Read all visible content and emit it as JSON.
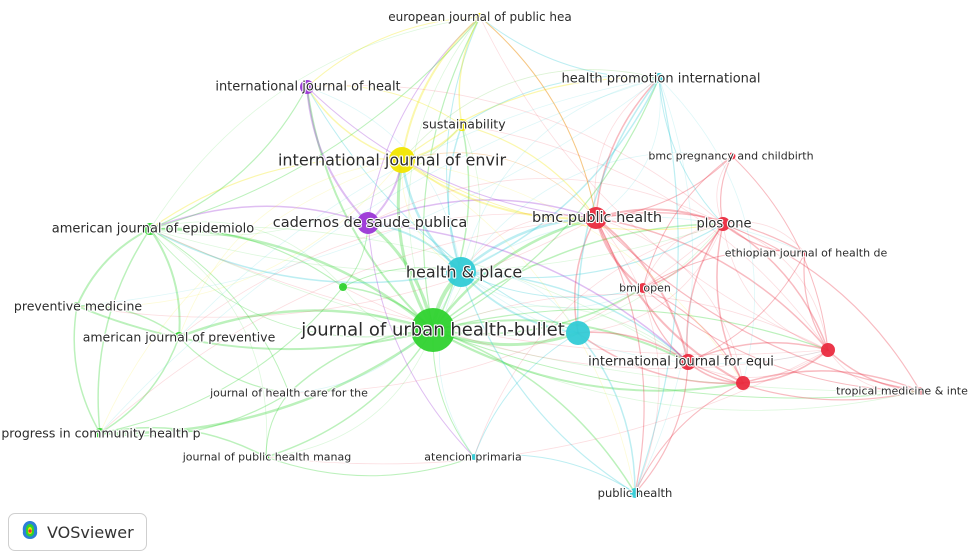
{
  "network": {
    "nodes": [
      {
        "id": "european",
        "label": "european journal of public hea",
        "cluster": "yellow"
      },
      {
        "id": "ijhealt",
        "label": "international journal of healt",
        "cluster": "purple"
      },
      {
        "id": "hpi",
        "label": "health promotion international",
        "cluster": "cyan"
      },
      {
        "id": "sustain",
        "label": "sustainability",
        "cluster": "yellow"
      },
      {
        "id": "bmcpreg",
        "label": "bmc pregnancy and childbirth",
        "cluster": "red"
      },
      {
        "id": "ijenvir",
        "label": "international journal of envir",
        "cluster": "yellow"
      },
      {
        "id": "amepi",
        "label": "american journal of epidemiolo",
        "cluster": "green"
      },
      {
        "id": "cadernos",
        "label": "cadernos de saude publica",
        "cluster": "purple"
      },
      {
        "id": "bmcph",
        "label": "bmc public health",
        "cluster": "red"
      },
      {
        "id": "plosone",
        "label": "plos one",
        "cluster": "red"
      },
      {
        "id": "ethiop",
        "label": "ethiopian journal of health de",
        "cluster": "red"
      },
      {
        "id": "hplace",
        "label": "health & place",
        "cluster": "cyan"
      },
      {
        "id": "gdot",
        "label": "",
        "cluster": "green"
      },
      {
        "id": "bmjopen",
        "label": "bmj open",
        "cluster": "red"
      },
      {
        "id": "prevmed",
        "label": "preventive medicine",
        "cluster": "green"
      },
      {
        "id": "juh",
        "label": "journal of urban health-bullet",
        "cluster": "green"
      },
      {
        "id": "cyanbig",
        "label": "",
        "cluster": "cyan"
      },
      {
        "id": "amprev",
        "label": "american journal of preventive",
        "cluster": "green"
      },
      {
        "id": "ijequi",
        "label": "international journal for equi",
        "cluster": "red"
      },
      {
        "id": "redright",
        "label": "",
        "cluster": "red"
      },
      {
        "id": "red2",
        "label": "",
        "cluster": "red"
      },
      {
        "id": "tropical",
        "label": "tropical medicine & inte",
        "cluster": "red"
      },
      {
        "id": "jhcare",
        "label": "journal of health care for the",
        "cluster": "green"
      },
      {
        "id": "progress",
        "label": "progress in community health p",
        "cluster": "green"
      },
      {
        "id": "jphman",
        "label": "journal of public health manag",
        "cluster": "green"
      },
      {
        "id": "atencion",
        "label": "atencion primaria",
        "cluster": "cyan"
      },
      {
        "id": "pubhealth",
        "label": "public health",
        "cluster": "cyan"
      }
    ]
  },
  "colors": {
    "yellow": "#f2e600",
    "purple": "#9b36d6",
    "cyan": "#33cbd6",
    "green": "#2fd22f",
    "red": "#ea2b3f"
  },
  "brand": {
    "name": "VOSviewer",
    "icon": "vosviewer-logo-icon"
  }
}
